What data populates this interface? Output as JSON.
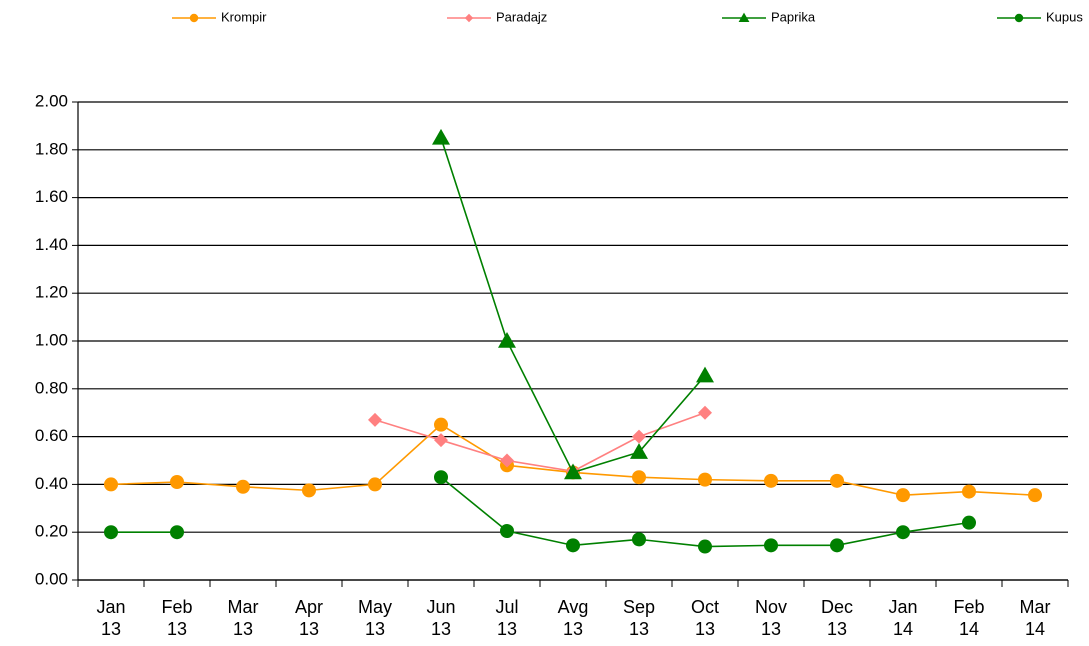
{
  "chart_data": {
    "type": "line",
    "categories": [
      "Jan 13",
      "Feb 13",
      "Mar 13",
      "Apr 13",
      "May 13",
      "Jun 13",
      "Jul 13",
      "Avg 13",
      "Sep 13",
      "Oct 13",
      "Nov 13",
      "Dec 13",
      "Jan 14",
      "Feb 14",
      "Mar 14"
    ],
    "series": [
      {
        "name": "Krompir",
        "color": "#ff9900",
        "marker": "circle",
        "values": [
          0.4,
          0.41,
          0.39,
          0.375,
          0.4,
          0.65,
          0.48,
          0.45,
          0.43,
          0.42,
          0.415,
          0.415,
          0.355,
          0.37,
          0.355
        ]
      },
      {
        "name": "Paradajz",
        "color": "#ff8080",
        "marker": "diamond",
        "values": [
          null,
          null,
          null,
          null,
          0.67,
          0.585,
          0.5,
          0.455,
          0.6,
          0.7,
          null,
          null,
          null,
          null,
          null
        ]
      },
      {
        "name": "Paprika",
        "color": "#008000",
        "marker": "triangle",
        "values": [
          null,
          null,
          null,
          null,
          null,
          1.85,
          1.0,
          0.45,
          0.535,
          0.855,
          null,
          null,
          null,
          null,
          null
        ]
      },
      {
        "name": "Kupus",
        "color": "#008000",
        "marker": "circle",
        "values": [
          0.2,
          0.2,
          null,
          null,
          null,
          0.43,
          0.205,
          0.145,
          0.17,
          0.14,
          0.145,
          0.145,
          0.2,
          0.24,
          null
        ]
      }
    ],
    "ylim": [
      0,
      2
    ],
    "yticks": [
      {
        "value": 0,
        "label": "0.00"
      },
      {
        "value": 0.2,
        "label": "0.20"
      },
      {
        "value": 0.4,
        "label": "0.40"
      },
      {
        "value": 0.6,
        "label": "0.60"
      },
      {
        "value": 0.8,
        "label": "0.80"
      },
      {
        "value": 1,
        "label": "1.00"
      },
      {
        "value": 1.2,
        "label": "1.20"
      },
      {
        "value": 1.4,
        "label": "1.40"
      },
      {
        "value": 1.6,
        "label": "1.60"
      },
      {
        "value": 1.8,
        "label": "1.80"
      },
      {
        "value": 2,
        "label": "2.00"
      }
    ],
    "grid": true,
    "legend": "top"
  }
}
